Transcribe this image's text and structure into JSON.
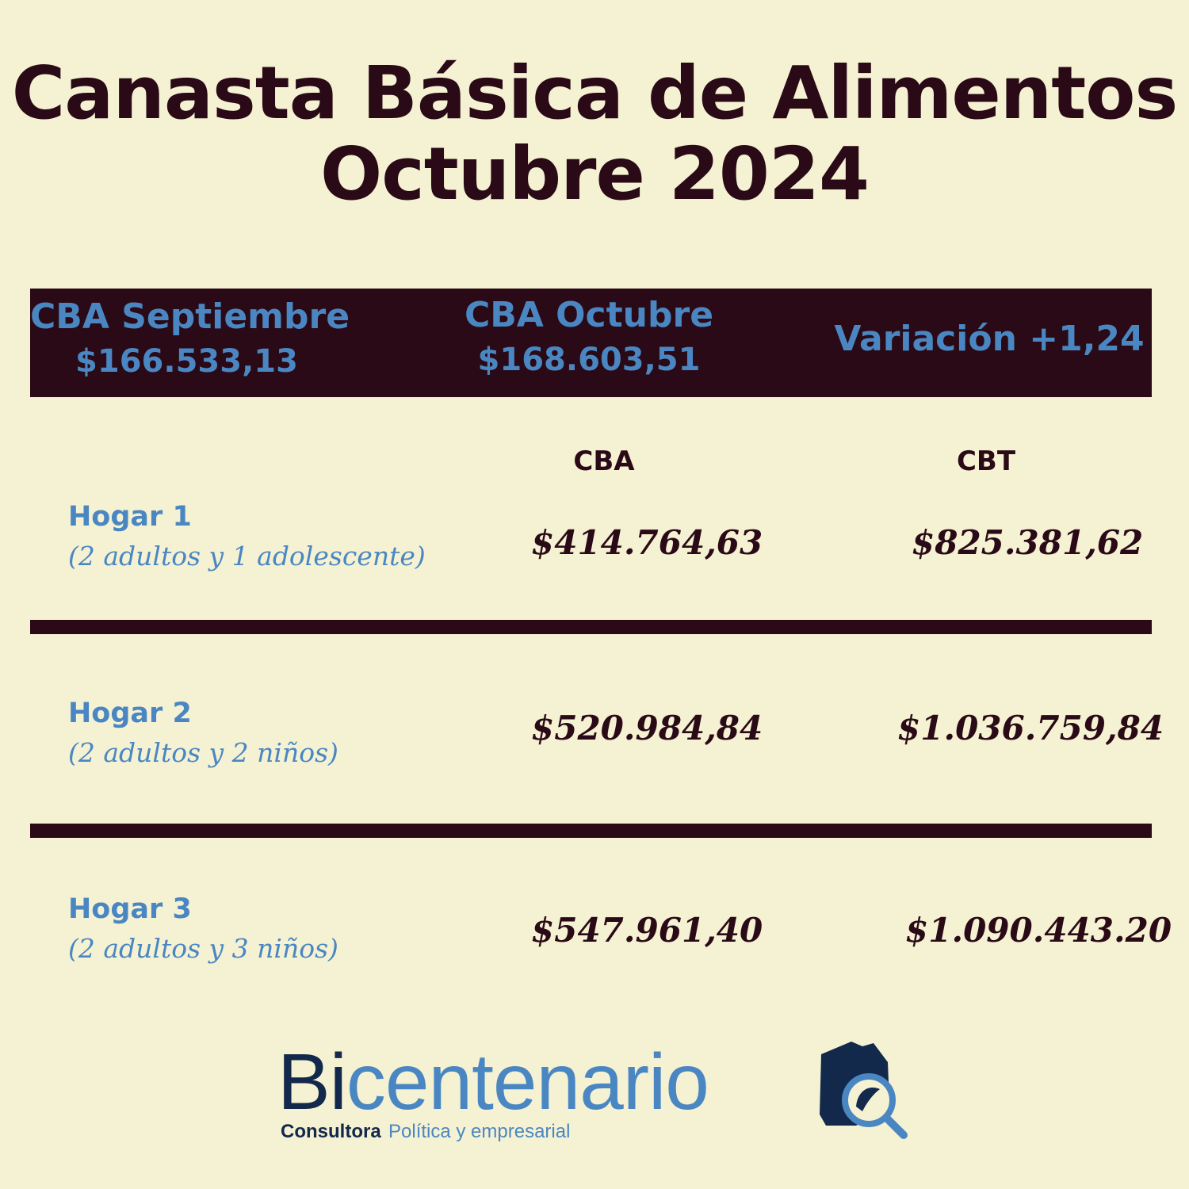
{
  "title": {
    "line1": "Canasta Básica de Alimentos",
    "line2": "Octubre 2024"
  },
  "band": {
    "september": {
      "label": "CBA Septiembre",
      "value": "$166.533,13"
    },
    "october": {
      "label": "CBA Octubre",
      "value": "$168.603,51"
    },
    "variation": {
      "label": "Variación +1,24"
    }
  },
  "columns": {
    "cba": "CBA",
    "cbt": "CBT"
  },
  "rows": [
    {
      "name": "Hogar 1",
      "desc": "(2 adultos y 1 adolescente)",
      "cba": "$414.764,63",
      "cbt": "$825.381,62"
    },
    {
      "name": "Hogar 2",
      "desc": "(2 adultos y 2 niños)",
      "cba": "$520.984,84",
      "cbt": "$1.036.759,84"
    },
    {
      "name": "Hogar 3",
      "desc": "(2 adultos y 3 niños)",
      "cba": "$547.961,40",
      "cbt": "$1.090.443.20"
    }
  ],
  "logo": {
    "word_a": "Bi",
    "word_b": "centenario",
    "sub_a": "Consultora",
    "sub_b": "Política y empresarial",
    "icon": "house-magnifier-icon"
  },
  "colors": {
    "background": "#f5f1d3",
    "dark": "#2a0a16",
    "accent": "#4a87c2",
    "navy": "#13294b"
  }
}
